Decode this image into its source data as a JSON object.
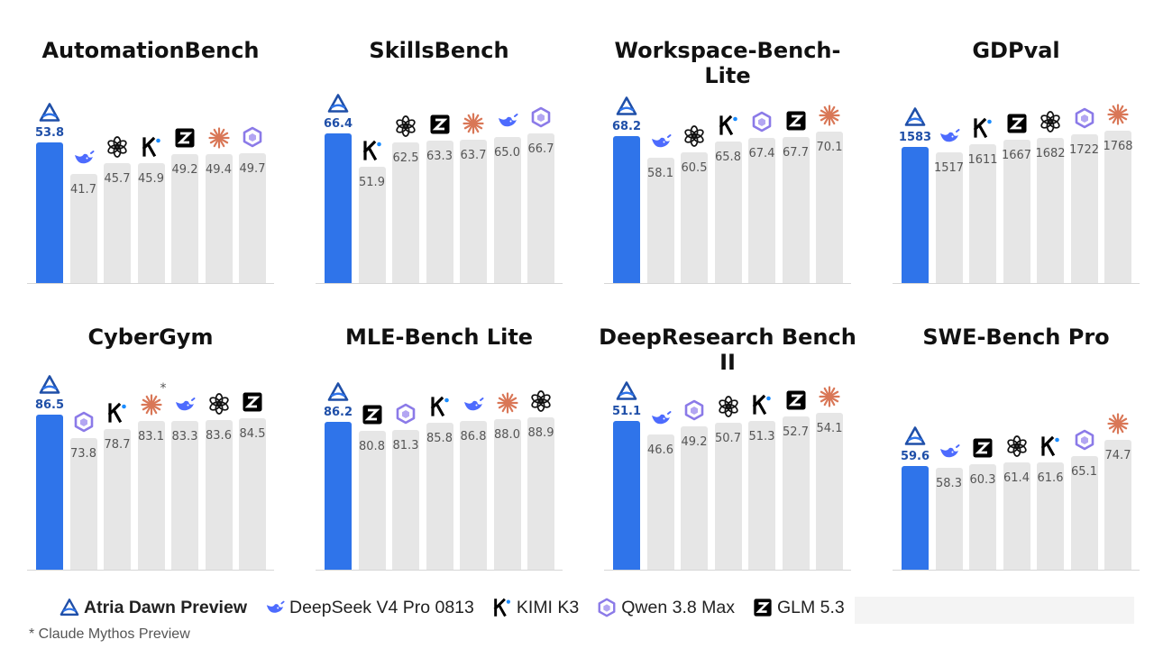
{
  "models": [
    {
      "id": "atria",
      "label": "Atria Dawn Preview",
      "icon": "atria-triangle-icon",
      "color": "#2f74ea"
    },
    {
      "id": "deepseek",
      "label": "DeepSeek V4 Pro 0813",
      "icon": "whale-icon",
      "color": "#4d6bfe"
    },
    {
      "id": "kimi",
      "label": "KIMI K3",
      "icon": "kimi-k-icon",
      "color": "#000000"
    },
    {
      "id": "qwen",
      "label": "Qwen 3.8 Max",
      "icon": "qwen-hexagon-icon",
      "color": "#7b68ee"
    },
    {
      "id": "glm",
      "label": "GLM 5.3",
      "icon": "glm-z-icon",
      "color": "#000000"
    },
    {
      "id": "gpt",
      "label": "",
      "icon": "openai-knot-icon",
      "color": "#111111"
    },
    {
      "id": "claude",
      "label": "",
      "icon": "claude-starburst-icon",
      "color": "#d97757"
    }
  ],
  "legend": {
    "entries": [
      "Atria Dawn Preview",
      "DeepSeek V4 Pro 0813",
      "KIMI K3",
      "Qwen 3.8 Max",
      "GLM 5.3"
    ]
  },
  "footnote": "* Claude Mythos Preview",
  "chart_data": [
    {
      "type": "bar",
      "title": "AutomationBench",
      "categories": [
        "atria",
        "deepseek",
        "gpt",
        "kimi",
        "glm",
        "claude",
        "qwen"
      ],
      "values": [
        53.8,
        41.7,
        45.7,
        45.9,
        49.2,
        49.4,
        49.7
      ],
      "labels": [
        "53.8",
        "41.7",
        "45.7",
        "45.9",
        "49.2",
        "49.4",
        "49.7"
      ],
      "ylim": [
        0,
        80
      ]
    },
    {
      "type": "bar",
      "title": "SkillsBench",
      "categories": [
        "atria",
        "kimi",
        "gpt",
        "glm",
        "claude",
        "deepseek",
        "qwen"
      ],
      "values": [
        66.4,
        51.9,
        62.5,
        63.3,
        63.7,
        65.0,
        66.7
      ],
      "labels": [
        "66.4",
        "51.9",
        "62.5",
        "63.3",
        "63.7",
        "65.0",
        "66.7"
      ],
      "ylim": [
        0,
        93
      ]
    },
    {
      "type": "bar",
      "title": "Workspace-Bench-Lite",
      "categories": [
        "atria",
        "deepseek",
        "gpt",
        "kimi",
        "qwen",
        "glm",
        "claude"
      ],
      "values": [
        68.2,
        58.1,
        60.5,
        65.8,
        67.4,
        67.7,
        70.1
      ],
      "labels": [
        "68.2",
        "58.1",
        "60.5",
        "65.8",
        "67.4",
        "67.7",
        "70.1"
      ],
      "ylim": [
        0,
        97
      ]
    },
    {
      "type": "bar",
      "title": "GDPval",
      "categories": [
        "atria",
        "deepseek",
        "kimi",
        "glm",
        "gpt",
        "qwen",
        "claude"
      ],
      "values": [
        1583,
        1517,
        1611,
        1667,
        1682,
        1722,
        1768
      ],
      "labels": [
        "1583",
        "1517",
        "1611",
        "1667",
        "1682",
        "1722",
        "1768"
      ],
      "ylim": [
        0,
        2425
      ]
    },
    {
      "type": "bar",
      "title": "CyberGym",
      "categories": [
        "atria",
        "qwen",
        "kimi",
        "claude",
        "deepseek",
        "gpt",
        "glm"
      ],
      "values": [
        86.5,
        73.8,
        78.7,
        83.1,
        83.3,
        83.6,
        84.5
      ],
      "labels": [
        "86.5",
        "73.8",
        "78.7",
        "83.1",
        "83.3",
        "83.6",
        "84.5"
      ],
      "asterisk_category": "claude",
      "ylim": [
        0,
        117
      ]
    },
    {
      "type": "bar",
      "title": "MLE-Bench Lite",
      "categories": [
        "atria",
        "glm",
        "qwen",
        "kimi",
        "deepseek",
        "claude",
        "gpt"
      ],
      "values": [
        86.2,
        80.8,
        81.3,
        85.8,
        86.8,
        88.0,
        88.9
      ],
      "labels": [
        "86.2",
        "80.8",
        "81.3",
        "85.8",
        "86.8",
        "88.0",
        "88.9"
      ],
      "ylim": [
        0,
        122
      ]
    },
    {
      "type": "bar",
      "title": "DeepResearch Bench II",
      "categories": [
        "atria",
        "deepseek",
        "qwen",
        "gpt",
        "kimi",
        "glm",
        "claude"
      ],
      "values": [
        51.1,
        46.6,
        49.2,
        50.7,
        51.3,
        52.7,
        54.1
      ],
      "labels": [
        "51.1",
        "46.6",
        "49.2",
        "50.7",
        "51.3",
        "52.7",
        "54.1"
      ],
      "ylim": [
        0,
        72
      ]
    },
    {
      "type": "bar",
      "title": "SWE-Bench Pro",
      "categories": [
        "atria",
        "deepseek",
        "glm",
        "gpt",
        "kimi",
        "qwen",
        "claude"
      ],
      "values": [
        59.6,
        58.3,
        60.3,
        61.4,
        61.6,
        65.1,
        74.7
      ],
      "labels": [
        "59.6",
        "58.3",
        "60.3",
        "61.4",
        "61.6",
        "65.1",
        "74.7"
      ],
      "ylim": [
        0,
        120
      ]
    }
  ]
}
